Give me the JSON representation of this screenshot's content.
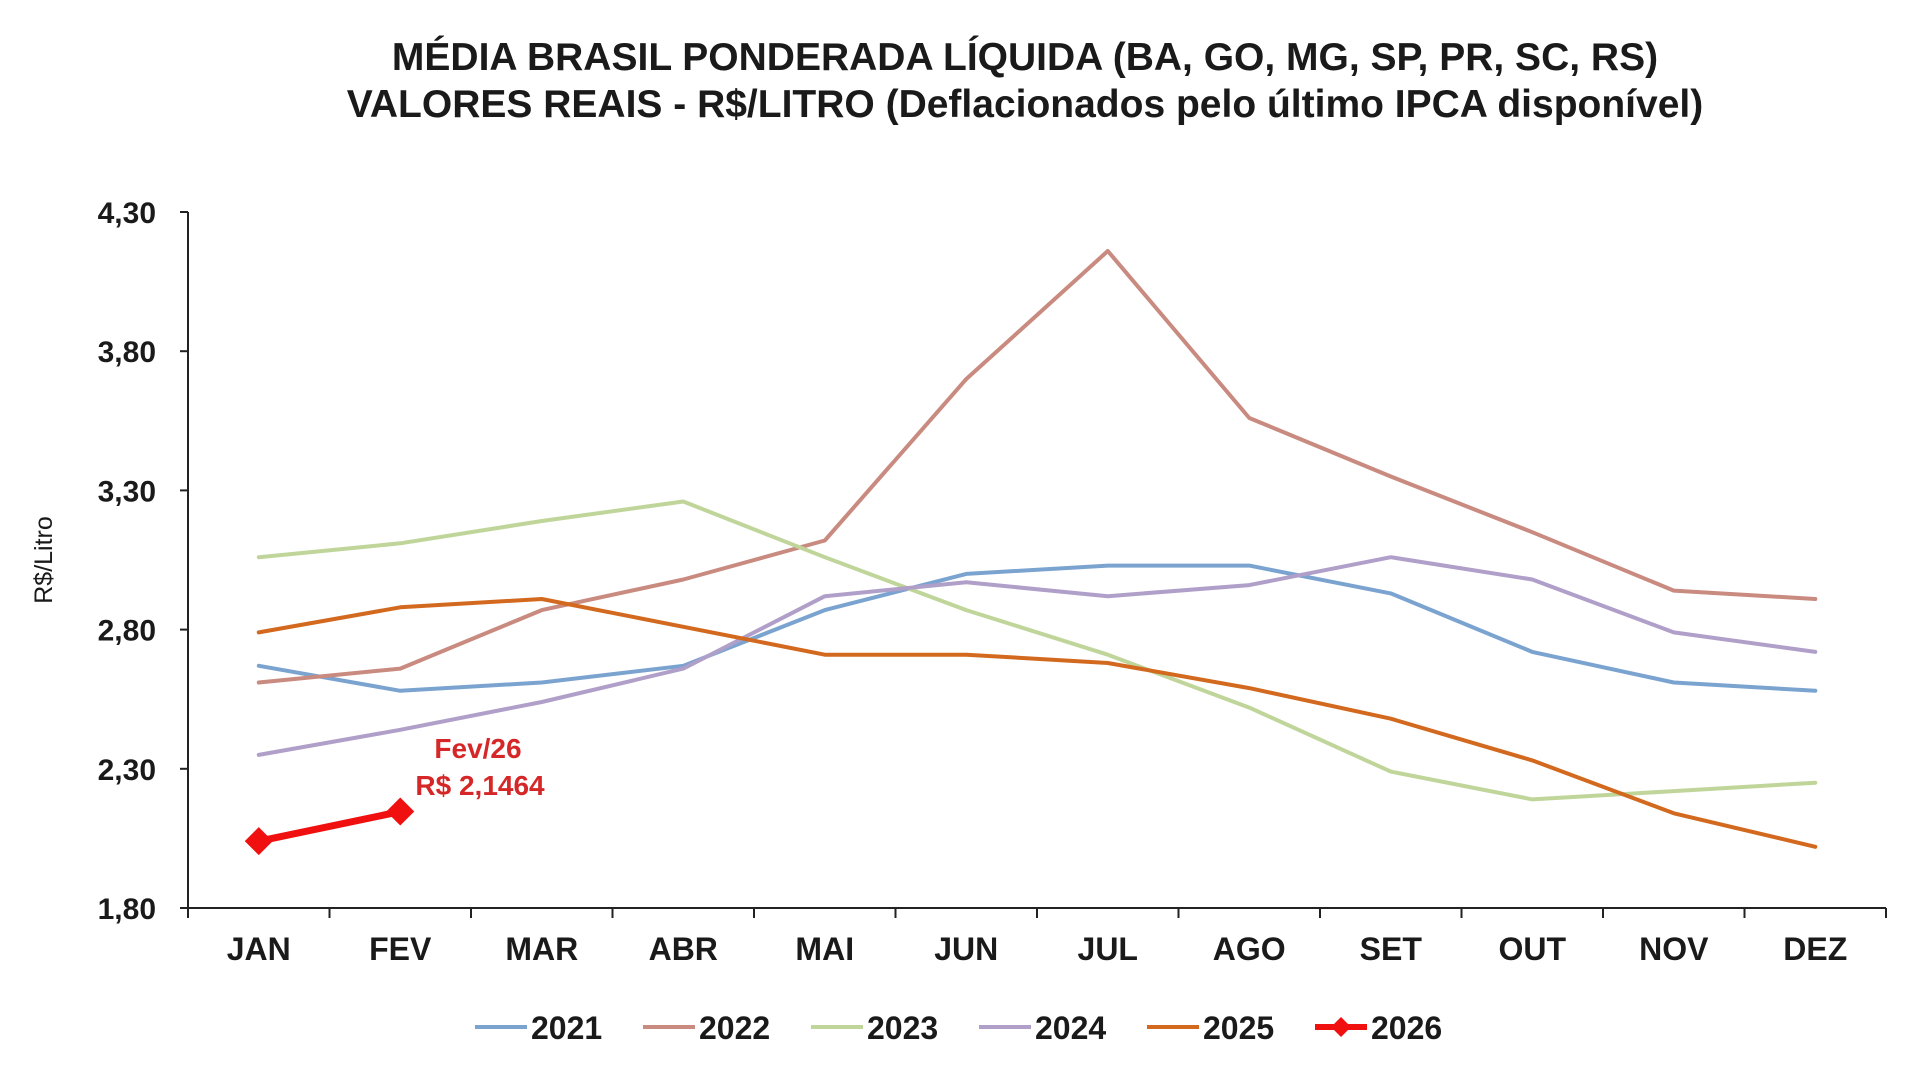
{
  "chart_data": {
    "type": "line",
    "title": "MÉDIA BRASIL PONDERADA LÍQUIDA (BA, GO, MG, SP, PR, SC, RS)",
    "subtitle": "VALORES REAIS - R$/LITRO (Deflacionados pelo último IPCA disponível)",
    "ylabel": "R$/Litro",
    "xlabel": "",
    "ylim": [
      1.8,
      4.3
    ],
    "yticks": [
      "4,30",
      "3,80",
      "3,30",
      "2,80",
      "2,30",
      "1,80"
    ],
    "ytick_values": [
      4.3,
      3.8,
      3.3,
      2.8,
      2.3,
      1.8
    ],
    "categories": [
      "JAN",
      "FEV",
      "MAR",
      "ABR",
      "MAI",
      "JUN",
      "JUL",
      "AGO",
      "SET",
      "OUT",
      "NOV",
      "DEZ"
    ],
    "grid": false,
    "legend_position": "bottom",
    "series": [
      {
        "name": "2021",
        "color": "#7ba3d0",
        "marker": "none",
        "values": [
          2.67,
          2.58,
          2.61,
          2.67,
          2.87,
          3.0,
          3.03,
          3.03,
          2.93,
          2.72,
          2.61,
          2.58
        ]
      },
      {
        "name": "2022",
        "color": "#c98a80",
        "marker": "none",
        "values": [
          2.61,
          2.66,
          2.87,
          2.98,
          3.12,
          3.7,
          4.16,
          3.56,
          3.35,
          3.15,
          2.94,
          2.91
        ]
      },
      {
        "name": "2023",
        "color": "#c0d59a",
        "marker": "none",
        "values": [
          3.06,
          3.11,
          3.19,
          3.26,
          3.06,
          2.87,
          2.71,
          2.52,
          2.29,
          2.19,
          2.22,
          2.25
        ]
      },
      {
        "name": "2024",
        "color": "#b09fc9",
        "marker": "none",
        "values": [
          2.35,
          2.44,
          2.54,
          2.66,
          2.92,
          2.97,
          2.92,
          2.96,
          3.06,
          2.98,
          2.79,
          2.72
        ]
      },
      {
        "name": "2025",
        "color": "#d2691e",
        "marker": "none",
        "values": [
          2.79,
          2.88,
          2.91,
          2.81,
          2.71,
          2.71,
          2.68,
          2.59,
          2.48,
          2.33,
          2.14,
          2.02
        ]
      },
      {
        "name": "2026",
        "color": "#f01010",
        "marker": "diamond",
        "values": [
          2.04,
          2.1464,
          null,
          null,
          null,
          null,
          null,
          null,
          null,
          null,
          null,
          null
        ]
      }
    ],
    "annotation": {
      "series": "2026",
      "category": "FEV",
      "line1": "Fev/26",
      "line2": "R$ 2,1464"
    }
  }
}
